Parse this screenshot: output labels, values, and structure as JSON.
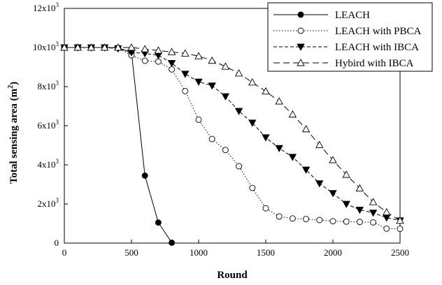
{
  "chart_data": {
    "type": "line",
    "xlabel": "Round",
    "ylabel": "Total sensing area (m",
    "ylabel_sup": "2",
    "ylabel_close": ")",
    "xlim": [
      0,
      2500
    ],
    "ylim": [
      0,
      12000
    ],
    "grid": false,
    "legend_position": "top-right",
    "x_ticks": [
      {
        "value": 0,
        "label": "0"
      },
      {
        "value": 500,
        "label": "500"
      },
      {
        "value": 1000,
        "label": "1000"
      },
      {
        "value": 1500,
        "label": "1500"
      },
      {
        "value": 2000,
        "label": "2000"
      },
      {
        "value": 2500,
        "label": "2500"
      }
    ],
    "y_ticks": [
      {
        "value": 0,
        "base": "0",
        "exp": ""
      },
      {
        "value": 2000,
        "base": "2x10",
        "exp": "3"
      },
      {
        "value": 4000,
        "base": "4x10",
        "exp": "3"
      },
      {
        "value": 6000,
        "base": "6x10",
        "exp": "3"
      },
      {
        "value": 8000,
        "base": "8x10",
        "exp": "3"
      },
      {
        "value": 10000,
        "base": "10x10",
        "exp": "3"
      },
      {
        "value": 12000,
        "base": "12x10",
        "exp": "3"
      }
    ],
    "series": [
      {
        "name": "LEACH",
        "marker": "filled-circle",
        "line": "solid",
        "x": [
          0,
          100,
          200,
          300,
          400,
          500,
          600,
          700,
          800
        ],
        "y": [
          10000,
          10000,
          10000,
          10000,
          9980,
          9750,
          3450,
          1050,
          20
        ]
      },
      {
        "name": "LEACH with PBCA",
        "marker": "open-circle",
        "line": "dotted",
        "x": [
          0,
          100,
          200,
          300,
          400,
          500,
          600,
          700,
          800,
          900,
          1000,
          1100,
          1200,
          1300,
          1400,
          1500,
          1600,
          1700,
          1800,
          1900,
          2000,
          2100,
          2200,
          2300,
          2400,
          2500
        ],
        "y": [
          10000,
          10000,
          10000,
          10000,
          9980,
          9600,
          9320,
          9280,
          8880,
          7770,
          6310,
          5320,
          4760,
          3930,
          2820,
          1780,
          1360,
          1260,
          1230,
          1180,
          1120,
          1100,
          1080,
          1060,
          740,
          730
        ]
      },
      {
        "name": "LEACH with IBCA",
        "marker": "filled-down-triangle",
        "line": "dashed",
        "x": [
          0,
          100,
          200,
          300,
          400,
          500,
          600,
          700,
          800,
          900,
          1000,
          1100,
          1200,
          1300,
          1400,
          1500,
          1600,
          1700,
          1800,
          1900,
          2000,
          2100,
          2200,
          2300,
          2400,
          2500
        ],
        "y": [
          10000,
          10000,
          10000,
          10000,
          9950,
          9750,
          9700,
          9600,
          9200,
          8650,
          8250,
          8050,
          7500,
          6750,
          6150,
          5400,
          4850,
          4400,
          3750,
          3050,
          2550,
          2000,
          1700,
          1550,
          1300,
          1150
        ]
      },
      {
        "name": "Hybird with IBCA",
        "marker": "open-up-triangle",
        "line": "long-dashed",
        "x": [
          0,
          100,
          200,
          300,
          400,
          500,
          600,
          700,
          800,
          900,
          1000,
          1100,
          1200,
          1300,
          1400,
          1500,
          1600,
          1700,
          1800,
          1900,
          2000,
          2100,
          2200,
          2300,
          2400,
          2500
        ],
        "y": [
          10000,
          10000,
          10000,
          10000,
          10000,
          10000,
          9920,
          9850,
          9770,
          9700,
          9560,
          9330,
          9030,
          8680,
          8220,
          7760,
          7250,
          6580,
          5830,
          5020,
          4250,
          3500,
          2800,
          2100,
          1580,
          1150
        ]
      }
    ]
  }
}
